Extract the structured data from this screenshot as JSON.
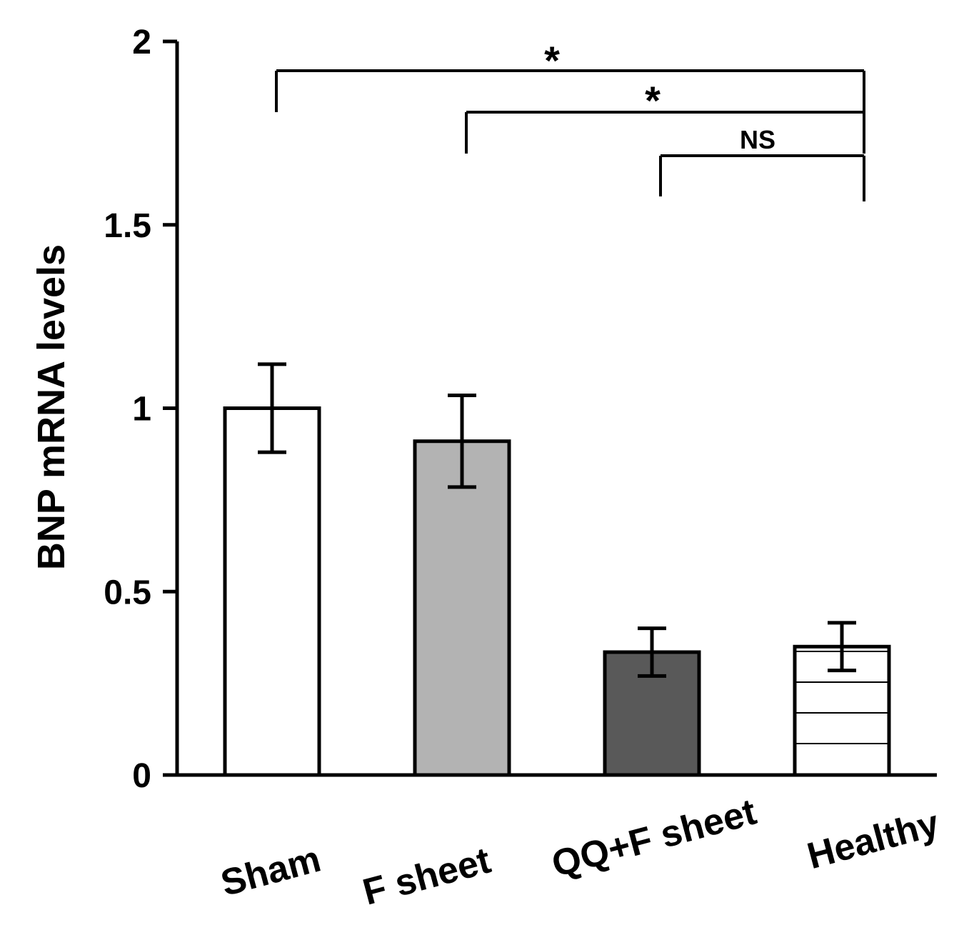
{
  "chart_data": {
    "type": "bar",
    "title": "",
    "xlabel": "",
    "ylabel": "BNP mRNA levels",
    "ylim": [
      0,
      2
    ],
    "yticks": [
      0,
      0.5,
      1,
      1.5,
      2
    ],
    "ytick_labels": [
      "0",
      "0.5",
      "1",
      "1.5",
      "2"
    ],
    "categories": [
      "Sham",
      "F sheet",
      "QQ+F sheet",
      "Healthy"
    ],
    "values": [
      1.0,
      0.91,
      0.335,
      0.35
    ],
    "errors": [
      0.12,
      0.125,
      0.065,
      0.065
    ],
    "fills": [
      "#ffffff",
      "#b3b3b3",
      "#595959",
      "#ffffff"
    ],
    "hatch": [
      false,
      false,
      false,
      true
    ],
    "significance": [
      {
        "from": 0,
        "to": 3,
        "label": "*"
      },
      {
        "from": 1,
        "to": 3,
        "label": "*"
      },
      {
        "from": 2,
        "to": 3,
        "label": "NS"
      }
    ]
  }
}
